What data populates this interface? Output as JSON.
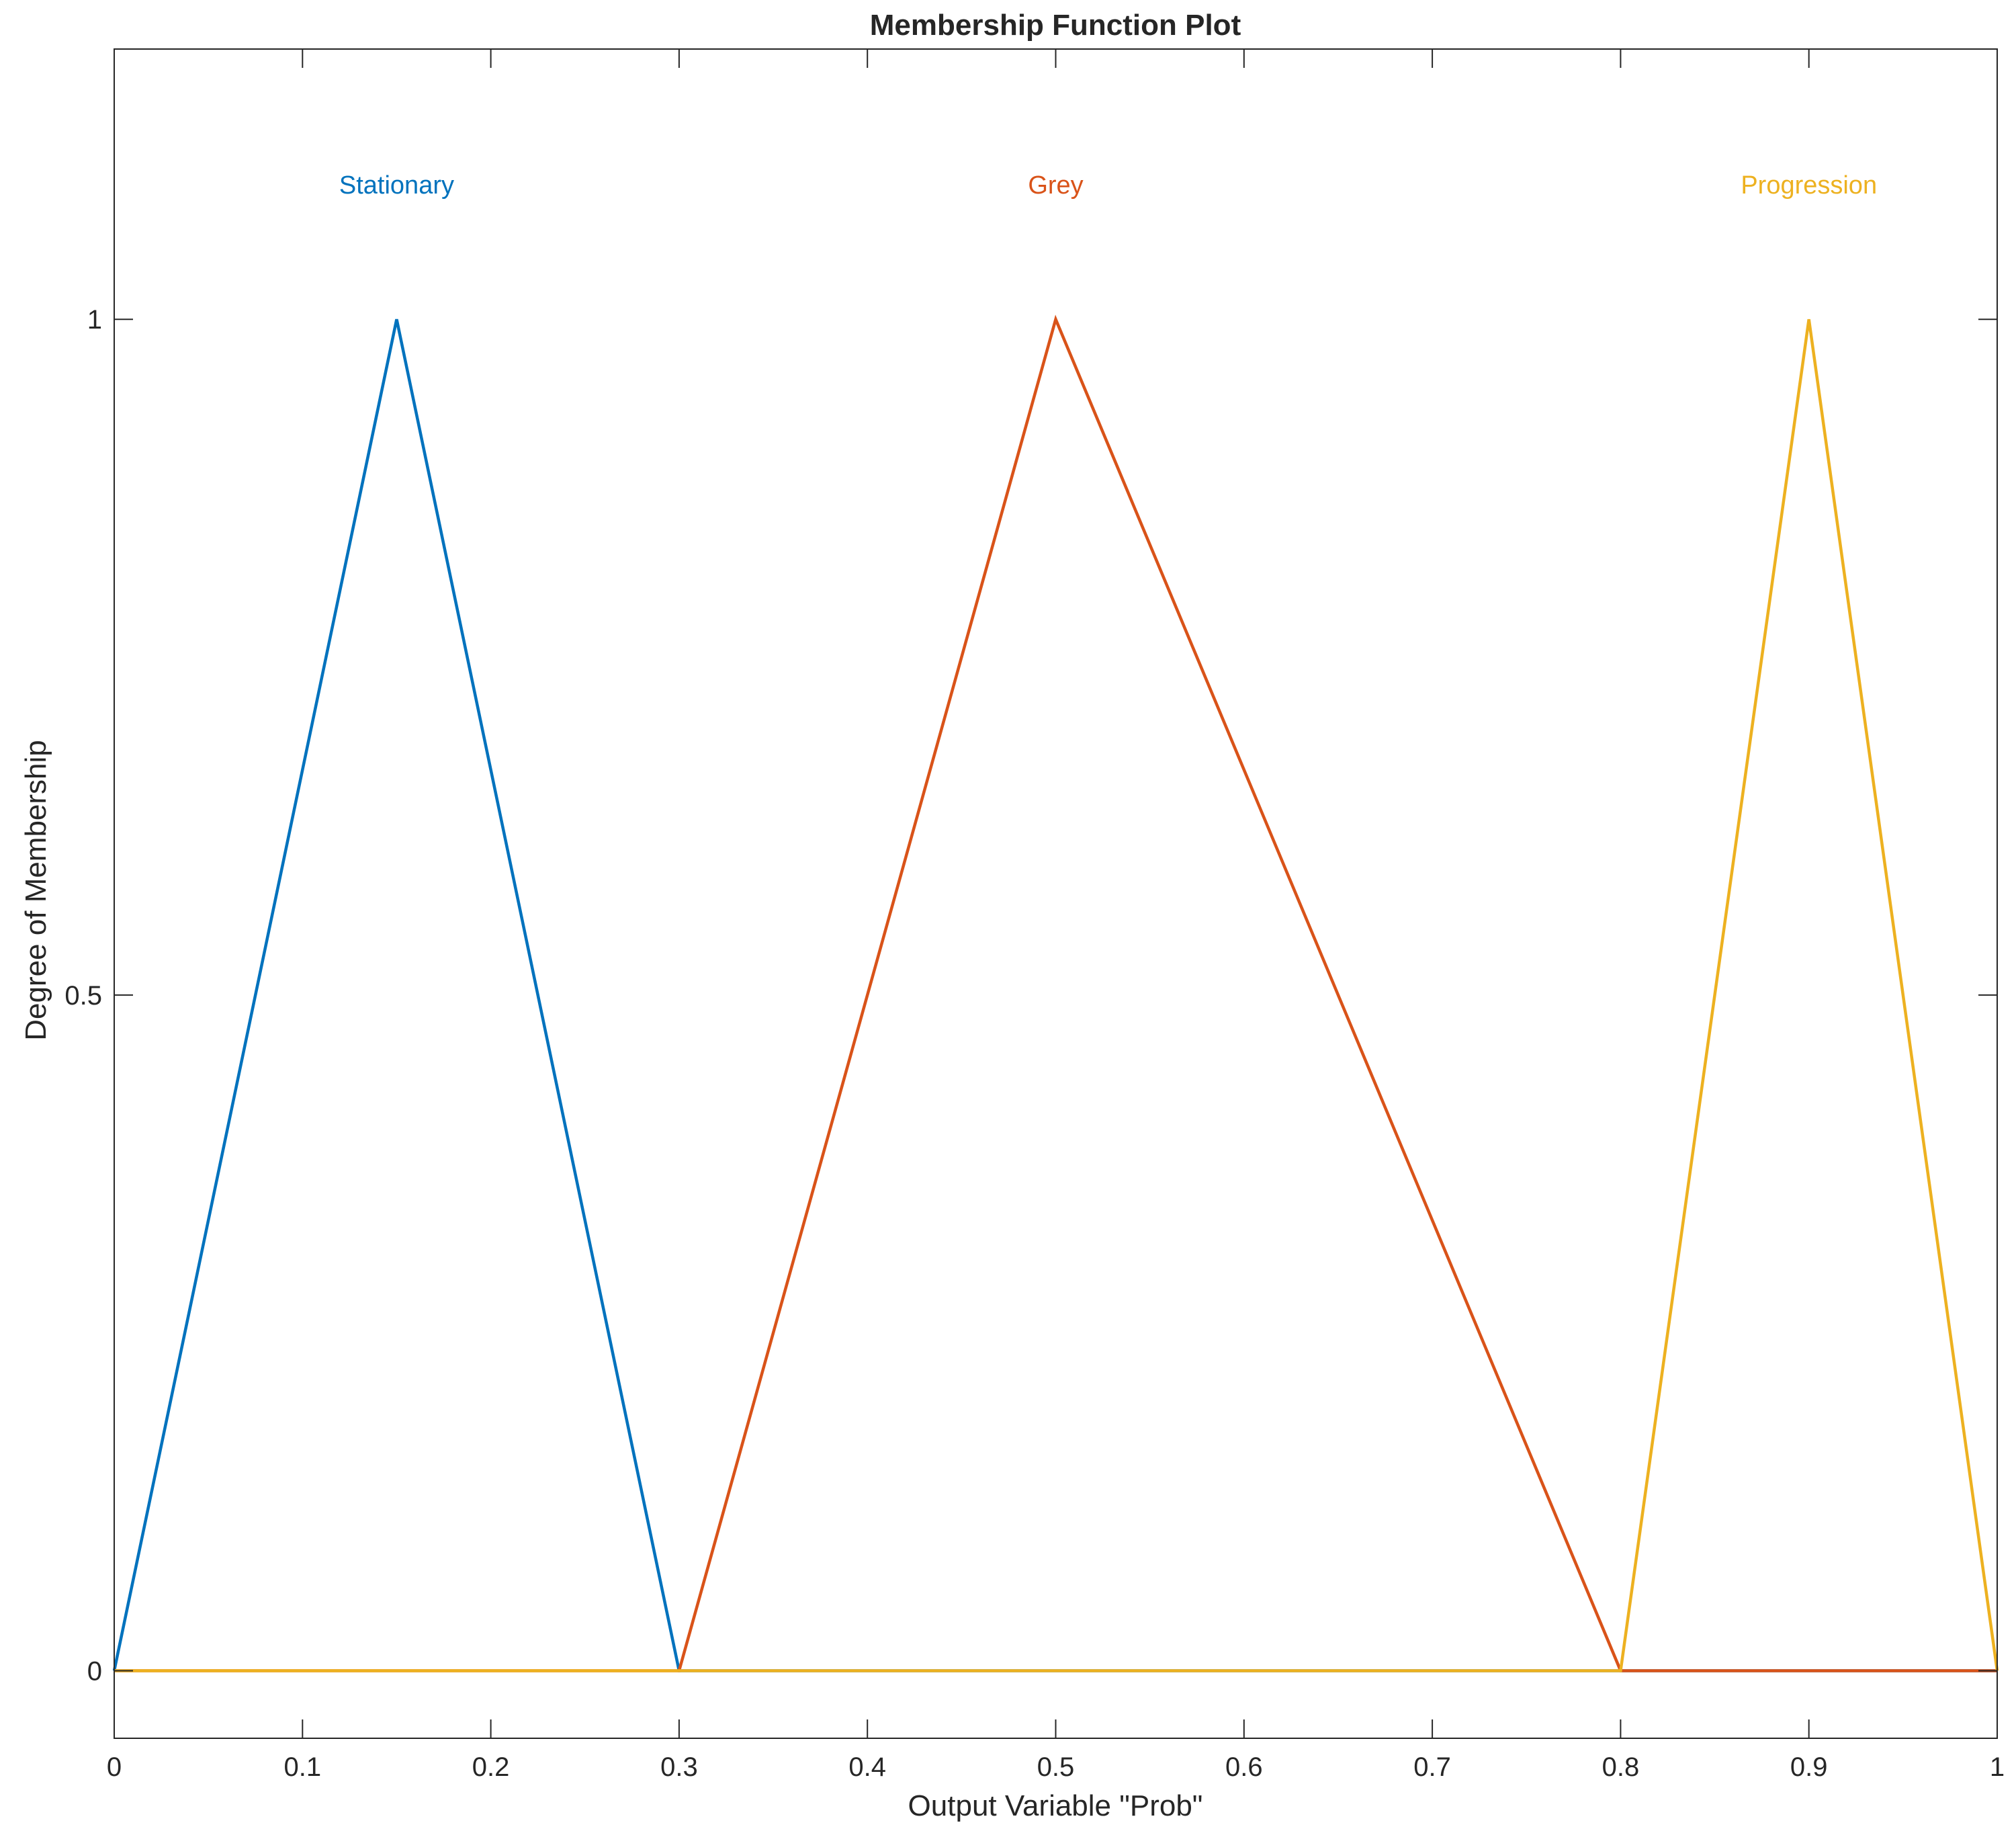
{
  "chart_data": {
    "type": "line",
    "title": "Membership Function Plot",
    "xlabel": "Output Variable \"Prob\"",
    "ylabel": "Degree of Membership",
    "xlim": [
      0,
      1
    ],
    "ylim": [
      -0.05,
      1.2
    ],
    "xticks": [
      "0",
      "0.1",
      "0.2",
      "0.3",
      "0.4",
      "0.5",
      "0.6",
      "0.7",
      "0.8",
      "0.9",
      "1"
    ],
    "yticks": [
      "0",
      "0.5",
      "1"
    ],
    "xtick_values": [
      0,
      0.1,
      0.2,
      0.3,
      0.4,
      0.5,
      0.6,
      0.7,
      0.8,
      0.9,
      1
    ],
    "ytick_values": [
      0,
      0.5,
      1
    ],
    "grid": false,
    "box": true,
    "series": [
      {
        "name": "Stationary",
        "color": "#0072BD",
        "x": [
          0,
          0.15,
          0.3,
          1
        ],
        "y": [
          0,
          1,
          0,
          0
        ]
      },
      {
        "name": "Grey",
        "color": "#D95319",
        "x": [
          0,
          0.3,
          0.5,
          0.8,
          1
        ],
        "y": [
          0,
          0,
          1,
          0,
          0
        ]
      },
      {
        "name": "Progression",
        "color": "#EDB120",
        "x": [
          0,
          0.8,
          0.9,
          1
        ],
        "y": [
          0,
          0,
          1,
          0
        ]
      }
    ],
    "annotations": [
      {
        "text": "Stationary",
        "x": 0.15,
        "y": 1.1,
        "color": "#0072BD"
      },
      {
        "text": "Grey",
        "x": 0.5,
        "y": 1.1,
        "color": "#D95319"
      },
      {
        "text": "Progression",
        "x": 0.9,
        "y": 1.1,
        "color": "#EDB120"
      }
    ]
  }
}
